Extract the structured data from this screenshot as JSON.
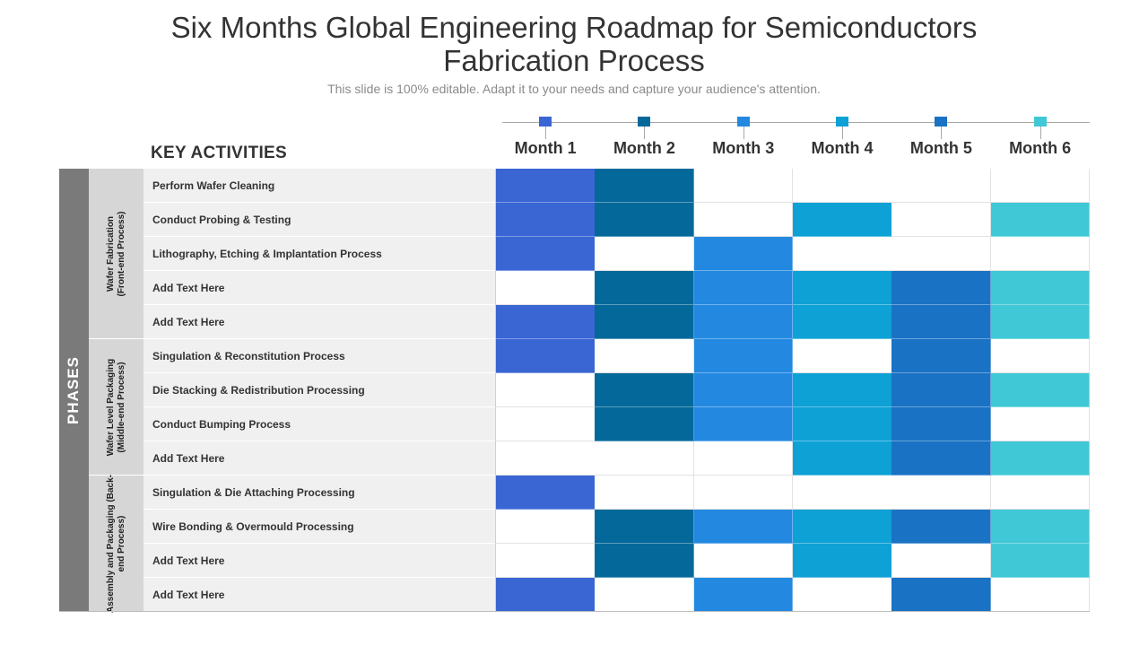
{
  "title": {
    "line1": "Six Months Global Engineering Roadmap for Semiconductors",
    "line2": "Fabrication Process"
  },
  "subtitle": "This slide is 100% editable. Adapt it to your needs and capture your audience's attention.",
  "key_activities_label": "KEY ACTIVITIES",
  "phases_label": "PHASES",
  "months": [
    {
      "label": "Month 1",
      "color": "#3a66d4"
    },
    {
      "label": "Month 2",
      "color": "#04699a"
    },
    {
      "label": "Month 3",
      "color": "#2389e0"
    },
    {
      "label": "Month 4",
      "color": "#0ea1d6"
    },
    {
      "label": "Month 5",
      "color": "#1a72c4"
    },
    {
      "label": "Month 6",
      "color": "#40c8d6"
    }
  ],
  "groups": [
    {
      "line1": "Wafer Fabrication",
      "line2": "(Front-end Process)",
      "rows": 5
    },
    {
      "line1": "Wafer Level Packaging",
      "line2": "(Middle-end Process)",
      "rows": 4
    },
    {
      "line1": "Assembly and Packaging (Back-",
      "line2": "end Process)",
      "rows": 4
    }
  ],
  "activities": [
    {
      "label": "Perform Wafer Cleaning",
      "active": [
        1,
        1,
        0,
        0,
        0,
        0
      ]
    },
    {
      "label": "Conduct Probing & Testing",
      "active": [
        1,
        1,
        0,
        1,
        0,
        1
      ]
    },
    {
      "label": "Lithography, Etching & Implantation Process",
      "active": [
        1,
        0,
        1,
        0,
        0,
        0
      ]
    },
    {
      "label": "Add Text Here",
      "active": [
        0,
        1,
        1,
        1,
        1,
        1
      ]
    },
    {
      "label": "Add Text Here",
      "active": [
        1,
        1,
        1,
        1,
        1,
        1
      ]
    },
    {
      "label": "Singulation & Reconstitution Process",
      "active": [
        1,
        0,
        1,
        0,
        1,
        0
      ]
    },
    {
      "label": "Die Stacking & Redistribution Processing",
      "active": [
        0,
        1,
        1,
        1,
        1,
        1
      ]
    },
    {
      "label": "Conduct Bumping Process",
      "active": [
        0,
        1,
        1,
        1,
        1,
        0
      ]
    },
    {
      "label": "Add Text Here",
      "active": [
        0,
        0,
        0,
        1,
        1,
        1
      ]
    },
    {
      "label": "Singulation & Die Attaching Processing",
      "active": [
        1,
        0,
        0,
        0,
        0,
        0
      ]
    },
    {
      "label": "Wire Bonding & Overmould Processing",
      "active": [
        0,
        1,
        1,
        1,
        1,
        1
      ]
    },
    {
      "label": "Add Text Here",
      "active": [
        0,
        1,
        0,
        1,
        0,
        1
      ]
    },
    {
      "label": "Add Text Here",
      "active": [
        1,
        0,
        1,
        0,
        1,
        0
      ]
    }
  ]
}
